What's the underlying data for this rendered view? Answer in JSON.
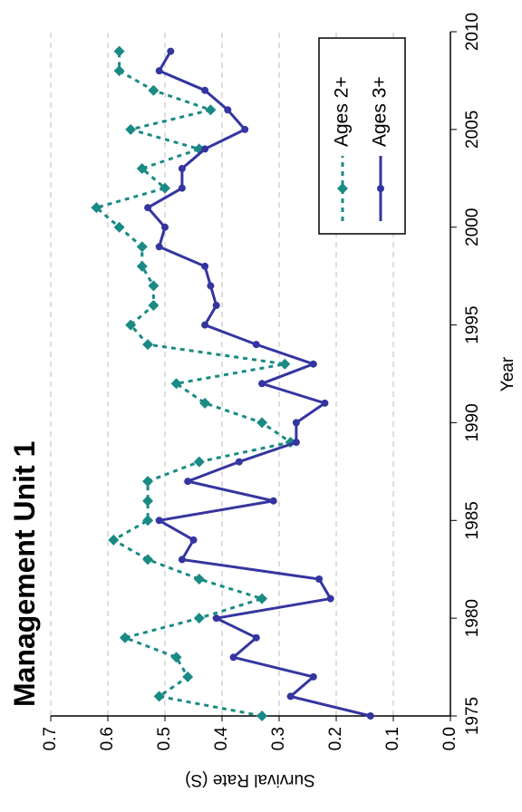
{
  "chart_data": {
    "type": "line",
    "title": "Management Unit 1",
    "x_label": "Year",
    "y_label": "Survival Rate (S)",
    "x": [
      1975,
      1976,
      1977,
      1978,
      1979,
      1980,
      1981,
      1982,
      1983,
      1984,
      1985,
      1986,
      1987,
      1988,
      1989,
      1990,
      1991,
      1992,
      1993,
      1994,
      1995,
      1996,
      1997,
      1998,
      1999,
      2000,
      2001,
      2002,
      2003,
      2004,
      2005,
      2006,
      2007,
      2008,
      2009
    ],
    "series": [
      {
        "name": "Ages 2+",
        "color": "#1a8a84",
        "dash": true,
        "marker": "diamond",
        "values": [
          0.33,
          0.51,
          0.46,
          0.48,
          0.57,
          0.44,
          0.33,
          0.44,
          0.53,
          0.59,
          0.53,
          0.53,
          0.53,
          0.44,
          0.28,
          0.33,
          0.43,
          0.48,
          0.29,
          0.53,
          0.56,
          0.52,
          0.52,
          0.54,
          0.54,
          0.58,
          0.62,
          0.5,
          0.54,
          0.44,
          0.56,
          0.42,
          0.52,
          0.58,
          0.58
        ]
      },
      {
        "name": "Ages 3+",
        "color": "#3535a0",
        "dash": false,
        "marker": "circle",
        "values": [
          0.14,
          0.28,
          0.24,
          0.38,
          0.34,
          0.41,
          0.21,
          0.23,
          0.47,
          0.45,
          0.51,
          0.31,
          0.46,
          0.37,
          0.27,
          0.27,
          0.22,
          0.33,
          0.24,
          0.34,
          0.43,
          0.41,
          0.42,
          0.43,
          0.51,
          0.5,
          0.53,
          0.47,
          0.47,
          0.43,
          0.36,
          0.39,
          0.43,
          0.51,
          0.49
        ]
      }
    ],
    "xlim": [
      1975,
      2010
    ],
    "xticks": [
      1975,
      1980,
      1985,
      1990,
      1995,
      2000,
      2005,
      2010
    ],
    "ylim": [
      0,
      0.7
    ],
    "yticks": [
      {
        "value": 0,
        "label": "0.0"
      },
      0.1,
      0.2,
      0.3,
      0.4,
      0.5,
      0.6,
      0.7
    ],
    "grid": true,
    "legend": "lower right",
    "rotation": -90
  }
}
